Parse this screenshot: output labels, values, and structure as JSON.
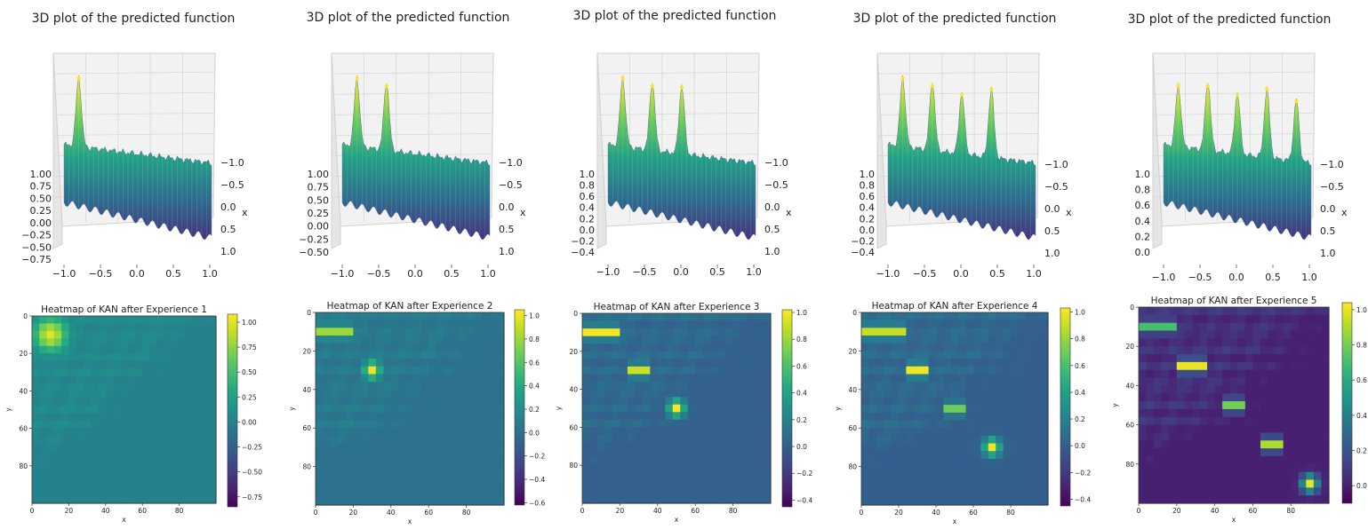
{
  "chart_data": [
    {
      "type": "surface",
      "title": "3D plot of the predicted function",
      "xlabel": "x",
      "x_ticks": [
        "−1.0",
        "−0.5",
        "0.0",
        "0.5",
        "1.0"
      ],
      "depth_ticks": [
        "−1.0",
        "−0.5",
        "0.0",
        "0.5",
        "1.0"
      ],
      "z_ticks": [
        "−0.75",
        "−0.50",
        "−0.25",
        "0.00",
        "0.25",
        "0.50",
        "0.75",
        "1.00"
      ],
      "peaks": [
        {
          "x": -0.8,
          "y": -0.8,
          "z": 1.0
        }
      ],
      "colormap": "viridis"
    },
    {
      "type": "surface",
      "title": "3D plot of the predicted function",
      "xlabel": "x",
      "x_ticks": [
        "−1.0",
        "−0.5",
        "0.0",
        "0.5",
        "1.0"
      ],
      "depth_ticks": [
        "−1.0",
        "−0.5",
        "0.0",
        "0.5",
        "1.0"
      ],
      "z_ticks": [
        "−0.50",
        "−0.25",
        "0.00",
        "0.25",
        "0.50",
        "0.75",
        "1.00"
      ],
      "peaks": [
        {
          "x": -0.8,
          "y": -0.8,
          "z": 1.0
        },
        {
          "x": -0.4,
          "y": -0.4,
          "z": 1.0
        }
      ],
      "colormap": "viridis"
    },
    {
      "type": "surface",
      "title": "3D plot of the predicted function",
      "xlabel": "x",
      "x_ticks": [
        "−1.0",
        "−0.5",
        "0.0",
        "0.5",
        "1.0"
      ],
      "depth_ticks": [
        "−1.0",
        "−0.5",
        "0.0",
        "0.5",
        "1.0"
      ],
      "z_ticks": [
        "−0.4",
        "−0.2",
        "0.0",
        "0.2",
        "0.4",
        "0.6",
        "0.8",
        "1.0"
      ],
      "peaks": [
        {
          "x": -0.8,
          "y": -0.8,
          "z": 1.0
        },
        {
          "x": -0.4,
          "y": -0.4,
          "z": 1.0
        },
        {
          "x": 0.0,
          "y": 0.0,
          "z": 1.0
        }
      ],
      "colormap": "viridis"
    },
    {
      "type": "surface",
      "title": "3D plot of the predicted function",
      "xlabel": "x",
      "x_ticks": [
        "−1.0",
        "−0.5",
        "0.0",
        "0.5",
        "1.0"
      ],
      "depth_ticks": [
        "−1.0",
        "−0.5",
        "0.0",
        "0.5",
        "1.0"
      ],
      "z_ticks": [
        "−0.4",
        "−0.2",
        "0.0",
        "0.2",
        "0.4",
        "0.6",
        "0.8",
        "1.0"
      ],
      "peaks": [
        {
          "x": -0.8,
          "y": -0.8,
          "z": 1.0
        },
        {
          "x": -0.4,
          "y": -0.4,
          "z": 1.0
        },
        {
          "x": 0.0,
          "y": 0.0,
          "z": 0.9
        },
        {
          "x": 0.4,
          "y": 0.4,
          "z": 1.0
        }
      ],
      "colormap": "viridis"
    },
    {
      "type": "surface",
      "title": "3D plot of the predicted function",
      "xlabel": "x",
      "x_ticks": [
        "−1.0",
        "−0.5",
        "0.0",
        "0.5",
        "1.0"
      ],
      "depth_ticks": [
        "−1.0",
        "−0.5",
        "0.0",
        "0.5",
        "1.0"
      ],
      "z_ticks": [
        "0.0",
        "0.2",
        "0.4",
        "0.6",
        "0.8",
        "1.0"
      ],
      "peaks": [
        {
          "x": -0.8,
          "y": -0.8,
          "z": 0.9
        },
        {
          "x": -0.4,
          "y": -0.4,
          "z": 1.0
        },
        {
          "x": 0.0,
          "y": 0.0,
          "z": 0.9
        },
        {
          "x": 0.4,
          "y": 0.4,
          "z": 1.0
        },
        {
          "x": 0.8,
          "y": 0.8,
          "z": 0.9
        }
      ],
      "colormap": "viridis"
    },
    {
      "type": "heatmap",
      "title": "Heatmap of KAN after Experience 1",
      "xlabel": "x",
      "ylabel": "y",
      "x_ticks": [
        "0",
        "20",
        "40",
        "60",
        "80"
      ],
      "y_ticks": [
        "0",
        "20",
        "40",
        "60",
        "80"
      ],
      "grid_size": 100,
      "colorbar_range": [
        -0.85,
        1.08
      ],
      "colorbar_ticks": [
        "1.00",
        "0.75",
        "0.50",
        "0.25",
        "0.00",
        "−0.25",
        "−0.50",
        "−0.75"
      ],
      "blobs": [
        {
          "x": 10,
          "y": 10,
          "value": 1.0
        }
      ],
      "bands": [],
      "colormap": "viridis"
    },
    {
      "type": "heatmap",
      "title": "Heatmap of KAN after Experience 2",
      "xlabel": "x",
      "ylabel": "y",
      "x_ticks": [
        "0",
        "20",
        "40",
        "60",
        "80"
      ],
      "y_ticks": [
        "0",
        "20",
        "40",
        "60",
        "80"
      ],
      "grid_size": 100,
      "colorbar_range": [
        -0.62,
        1.05
      ],
      "colorbar_ticks": [
        "1.0",
        "0.8",
        "0.6",
        "0.4",
        "0.2",
        "0.0",
        "−0.2",
        "−0.4",
        "−0.6"
      ],
      "blobs": [
        {
          "x": 30,
          "y": 30,
          "value": 1.0
        }
      ],
      "bands": [
        {
          "x0": 0,
          "x1": 20,
          "y": 10,
          "value": 0.8
        }
      ],
      "colormap": "viridis"
    },
    {
      "type": "heatmap",
      "title": "Heatmap of KAN after Experience 3",
      "xlabel": "x",
      "ylabel": "y",
      "x_ticks": [
        "0",
        "20",
        "40",
        "60",
        "80"
      ],
      "y_ticks": [
        "0",
        "20",
        "40",
        "60",
        "80"
      ],
      "grid_size": 100,
      "colorbar_range": [
        -0.45,
        1.02
      ],
      "colorbar_ticks": [
        "1.0",
        "0.8",
        "0.6",
        "0.4",
        "0.2",
        "0.0",
        "−0.2",
        "−0.4"
      ],
      "blobs": [
        {
          "x": 50,
          "y": 50,
          "value": 1.0
        }
      ],
      "bands": [
        {
          "x0": 0,
          "x1": 20,
          "y": 10,
          "value": 1.0
        },
        {
          "x0": 24,
          "x1": 36,
          "y": 30,
          "value": 0.9
        }
      ],
      "colormap": "viridis"
    },
    {
      "type": "heatmap",
      "title": "Heatmap of KAN after Experience 4",
      "xlabel": "x",
      "ylabel": "y",
      "x_ticks": [
        "0",
        "20",
        "40",
        "60",
        "80"
      ],
      "y_ticks": [
        "0",
        "20",
        "40",
        "60",
        "80"
      ],
      "grid_size": 100,
      "colorbar_range": [
        -0.45,
        1.03
      ],
      "colorbar_ticks": [
        "1.0",
        "0.8",
        "0.6",
        "0.4",
        "0.2",
        "0.0",
        "−0.2",
        "−0.4"
      ],
      "blobs": [
        {
          "x": 70,
          "y": 70,
          "value": 1.0
        }
      ],
      "bands": [
        {
          "x0": 0,
          "x1": 22,
          "y": 10,
          "value": 0.9
        },
        {
          "x0": 23,
          "x1": 37,
          "y": 30,
          "value": 1.0
        },
        {
          "x0": 46,
          "x1": 56,
          "y": 50,
          "value": 0.7
        }
      ],
      "colormap": "viridis"
    },
    {
      "type": "heatmap",
      "title": "Heatmap of KAN after Experience 5",
      "xlabel": "x",
      "ylabel": "y",
      "x_ticks": [
        "0",
        "20",
        "40",
        "60",
        "80"
      ],
      "y_ticks": [
        "0",
        "20",
        "40",
        "60",
        "80"
      ],
      "grid_size": 100,
      "colorbar_range": [
        -0.1,
        1.04
      ],
      "colorbar_ticks": [
        "1.0",
        "0.8",
        "0.6",
        "0.4",
        "0.2",
        "0.0"
      ],
      "blobs": [
        {
          "x": 90,
          "y": 90,
          "value": 1.0
        }
      ],
      "bands": [
        {
          "x0": 0,
          "x1": 20,
          "y": 10,
          "value": 0.7
        },
        {
          "x0": 22,
          "x1": 36,
          "y": 30,
          "value": 1.0
        },
        {
          "x0": 46,
          "x1": 56,
          "y": 50,
          "value": 0.8
        },
        {
          "x0": 66,
          "x1": 74,
          "y": 70,
          "value": 0.9
        }
      ],
      "colormap": "viridis"
    }
  ]
}
